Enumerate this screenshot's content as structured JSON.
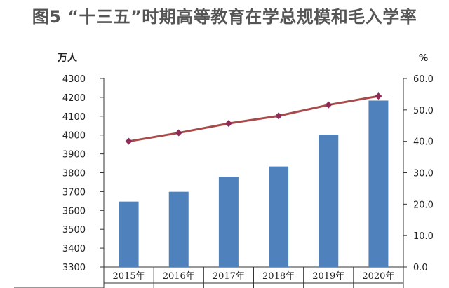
{
  "chart_data": {
    "type": "bar",
    "title": "图5 “十三五”时期高等教育在学总规模和毛入学率",
    "categories": [
      "2015年",
      "2016年",
      "2017年",
      "2018年",
      "2019年",
      "2020年"
    ],
    "series": [
      {
        "values": [
          3647,
          3699,
          3779,
          3833,
          4002,
          4183
        ],
        "axis": "left",
        "chart": "bar",
        "color": "#4f81bd"
      },
      {
        "values": [
          40.0,
          42.7,
          45.7,
          48.1,
          51.6,
          54.4
        ],
        "axis": "right",
        "chart": "line",
        "color": "#a94a4a"
      }
    ],
    "ylabel": "万人",
    "ylim": [
      3300,
      4300
    ],
    "y_ticks": [
      "3300",
      "3400",
      "3500",
      "3600",
      "3700",
      "3800",
      "3900",
      "4000",
      "4100",
      "4200",
      "4300"
    ],
    "y2label": "%",
    "y2lim": [
      0,
      60
    ],
    "y2_ticks": [
      "0.0",
      "10.0",
      "20.0",
      "30.0",
      "40.0",
      "50.0",
      "60.0"
    ],
    "grid": false
  }
}
